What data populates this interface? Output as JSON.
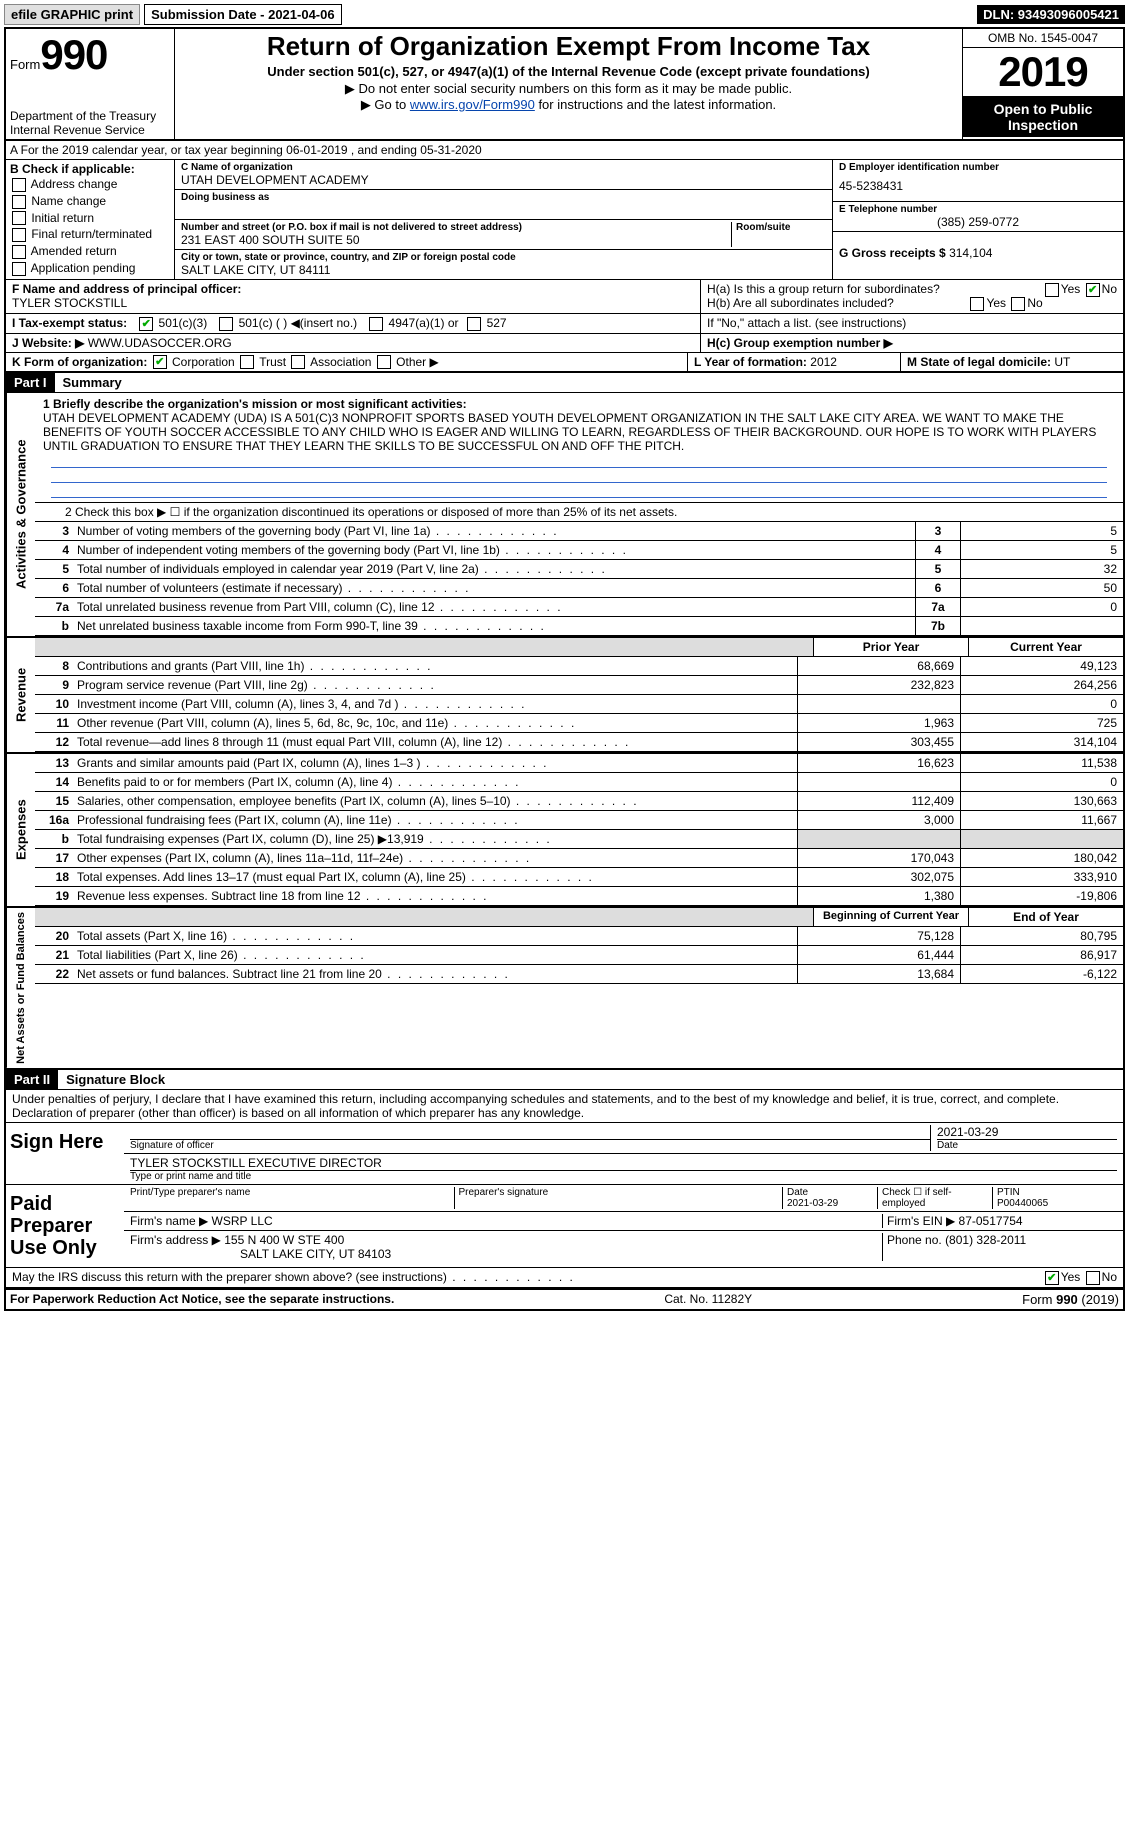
{
  "topbar": {
    "efile": "efile GRAPHIC print",
    "submission": "Submission Date - 2021-04-06",
    "dln": "DLN: 93493096005421"
  },
  "header": {
    "form_prefix": "Form",
    "form_no": "990",
    "dept": "Department of the Treasury\nInternal Revenue Service",
    "title": "Return of Organization Exempt From Income Tax",
    "subtitle": "Under section 501(c), 527, or 4947(a)(1) of the Internal Revenue Code (except private foundations)",
    "note1": "▶ Do not enter social security numbers on this form as it may be made public.",
    "note2_pre": "▶ Go to ",
    "note2_link": "www.irs.gov/Form990",
    "note2_post": " for instructions and the latest information.",
    "omb": "OMB No. 1545-0047",
    "year": "2019",
    "inspection": "Open to Public Inspection"
  },
  "line_a": "A For the 2019 calendar year, or tax year beginning 06-01-2019     , and ending 05-31-2020",
  "section_b": {
    "label": "B Check if applicable:",
    "items": [
      "Address change",
      "Name change",
      "Initial return",
      "Final return/terminated",
      "Amended return",
      "Application pending"
    ]
  },
  "section_c": {
    "name_label": "C Name of organization",
    "name": "UTAH DEVELOPMENT ACADEMY",
    "dba_label": "Doing business as",
    "addr_label": "Number and street (or P.O. box if mail is not delivered to street address)",
    "room": "Room/suite",
    "addr": "231 EAST 400 SOUTH SUITE 50",
    "city_label": "City or town, state or province, country, and ZIP or foreign postal code",
    "city": "SALT LAKE CITY, UT  84111"
  },
  "section_d": {
    "ein_label": "D Employer identification number",
    "ein": "45-5238431",
    "tel_label": "E Telephone number",
    "tel": "(385) 259-0772",
    "gross_label": "G Gross receipts $",
    "gross": "314,104"
  },
  "section_f": {
    "label": "F  Name and address of principal officer:",
    "name": "TYLER STOCKSTILL"
  },
  "section_h": {
    "ha": "H(a)  Is this a group return for subordinates?",
    "hb": "H(b)  Are all subordinates included?",
    "hb_note": "If \"No,\" attach a list. (see instructions)",
    "hc": "H(c)  Group exemption number ▶",
    "yes": "Yes",
    "no": "No"
  },
  "section_i": {
    "label": "I  Tax-exempt status:",
    "opts": [
      "501(c)(3)",
      "501(c) (   ) ◀(insert no.)",
      "4947(a)(1) or",
      "527"
    ]
  },
  "section_j": {
    "label": "J  Website: ▶",
    "val": "WWW.UDASOCCER.ORG"
  },
  "section_k": {
    "label": "K Form of organization:",
    "opts": [
      "Corporation",
      "Trust",
      "Association",
      "Other ▶"
    ]
  },
  "section_l": {
    "label": "L Year of formation:",
    "val": "2012"
  },
  "section_m": {
    "label": "M State of legal domicile:",
    "val": "UT"
  },
  "part1": {
    "tag": "Part I",
    "title": "Summary",
    "side_gov": "Activities & Governance",
    "side_rev": "Revenue",
    "side_exp": "Expenses",
    "side_net": "Net Assets or Fund Balances",
    "line1_label": "1  Briefly describe the organization's mission or most significant activities:",
    "mission": "UTAH DEVELOPMENT ACADEMY (UDA) IS A 501(C)3 NONPROFIT SPORTS BASED YOUTH DEVELOPMENT ORGANIZATION IN THE SALT LAKE CITY AREA. WE WANT TO MAKE THE BENEFITS OF YOUTH SOCCER ACCESSIBLE TO ANY CHILD WHO IS EAGER AND WILLING TO LEARN, REGARDLESS OF THEIR BACKGROUND. OUR HOPE IS TO WORK WITH PLAYERS UNTIL GRADUATION TO ENSURE THAT THEY LEARN THE SKILLS TO BE SUCCESSFUL ON AND OFF THE PITCH.",
    "line2": "2    Check this box ▶ ☐  if the organization discontinued its operations or disposed of more than 25% of its net assets.",
    "prior": "Prior Year",
    "current": "Current Year",
    "begin": "Beginning of Current Year",
    "end": "End of Year",
    "rows_gov": [
      {
        "n": "3",
        "d": "Number of voting members of the governing body (Part VI, line 1a)",
        "box": "3",
        "v": "5"
      },
      {
        "n": "4",
        "d": "Number of independent voting members of the governing body (Part VI, line 1b)",
        "box": "4",
        "v": "5"
      },
      {
        "n": "5",
        "d": "Total number of individuals employed in calendar year 2019 (Part V, line 2a)",
        "box": "5",
        "v": "32"
      },
      {
        "n": "6",
        "d": "Total number of volunteers (estimate if necessary)",
        "box": "6",
        "v": "50"
      },
      {
        "n": "7a",
        "d": "Total unrelated business revenue from Part VIII, column (C), line 12",
        "box": "7a",
        "v": "0"
      },
      {
        "n": "b",
        "d": "Net unrelated business taxable income from Form 990-T, line 39",
        "box": "7b",
        "v": ""
      }
    ],
    "rows_rev": [
      {
        "n": "8",
        "d": "Contributions and grants (Part VIII, line 1h)",
        "p": "68,669",
        "c": "49,123"
      },
      {
        "n": "9",
        "d": "Program service revenue (Part VIII, line 2g)",
        "p": "232,823",
        "c": "264,256"
      },
      {
        "n": "10",
        "d": "Investment income (Part VIII, column (A), lines 3, 4, and 7d )",
        "p": "",
        "c": "0"
      },
      {
        "n": "11",
        "d": "Other revenue (Part VIII, column (A), lines 5, 6d, 8c, 9c, 10c, and 11e)",
        "p": "1,963",
        "c": "725"
      },
      {
        "n": "12",
        "d": "Total revenue—add lines 8 through 11 (must equal Part VIII, column (A), line 12)",
        "p": "303,455",
        "c": "314,104"
      }
    ],
    "rows_exp": [
      {
        "n": "13",
        "d": "Grants and similar amounts paid (Part IX, column (A), lines 1–3 )",
        "p": "16,623",
        "c": "11,538"
      },
      {
        "n": "14",
        "d": "Benefits paid to or for members (Part IX, column (A), line 4)",
        "p": "",
        "c": "0"
      },
      {
        "n": "15",
        "d": "Salaries, other compensation, employee benefits (Part IX, column (A), lines 5–10)",
        "p": "112,409",
        "c": "130,663"
      },
      {
        "n": "16a",
        "d": "Professional fundraising fees (Part IX, column (A), line 11e)",
        "p": "3,000",
        "c": "11,667"
      },
      {
        "n": "b",
        "d": "Total fundraising expenses (Part IX, column (D), line 25) ▶13,919",
        "p": "",
        "c": "",
        "grey": true
      },
      {
        "n": "17",
        "d": "Other expenses (Part IX, column (A), lines 11a–11d, 11f–24e)",
        "p": "170,043",
        "c": "180,042"
      },
      {
        "n": "18",
        "d": "Total expenses. Add lines 13–17 (must equal Part IX, column (A), line 25)",
        "p": "302,075",
        "c": "333,910"
      },
      {
        "n": "19",
        "d": "Revenue less expenses. Subtract line 18 from line 12",
        "p": "1,380",
        "c": "-19,806"
      }
    ],
    "rows_net": [
      {
        "n": "20",
        "d": "Total assets (Part X, line 16)",
        "p": "75,128",
        "c": "80,795"
      },
      {
        "n": "21",
        "d": "Total liabilities (Part X, line 26)",
        "p": "61,444",
        "c": "86,917"
      },
      {
        "n": "22",
        "d": "Net assets or fund balances. Subtract line 21 from line 20",
        "p": "13,684",
        "c": "-6,122"
      }
    ]
  },
  "part2": {
    "tag": "Part II",
    "title": "Signature Block",
    "perjury": "Under penalties of perjury, I declare that I have examined this return, including accompanying schedules and statements, and to the best of my knowledge and belief, it is true, correct, and complete. Declaration of preparer (other than officer) is based on all information of which preparer has any knowledge.",
    "sign_here": "Sign Here",
    "sig_officer": "Signature of officer",
    "sig_date": "2021-03-29",
    "date_label": "Date",
    "name_title": "TYLER STOCKSTILL  EXECUTIVE DIRECTOR",
    "type_name": "Type or print name and title",
    "paid": "Paid Preparer Use Only",
    "print_name": "Print/Type preparer's name",
    "prep_sig": "Preparer's signature",
    "prep_date_label": "Date",
    "prep_date": "2021-03-29",
    "self_emp": "Check ☐ if self-employed",
    "ptin_label": "PTIN",
    "ptin": "P00440065",
    "firm_name_label": "Firm's name    ▶",
    "firm_name": "WSRP LLC",
    "firm_ein_label": "Firm's EIN ▶",
    "firm_ein": "87-0517754",
    "firm_addr_label": "Firm's address ▶",
    "firm_addr": "155 N 400 W STE 400",
    "firm_city": "SALT LAKE CITY, UT  84103",
    "phone_label": "Phone no.",
    "phone": "(801) 328-2011",
    "discuss": "May the IRS discuss this return with the preparer shown above? (see instructions)"
  },
  "footer": {
    "left": "For Paperwork Reduction Act Notice, see the separate instructions.",
    "mid": "Cat. No. 11282Y",
    "right": "Form 990 (2019)"
  }
}
